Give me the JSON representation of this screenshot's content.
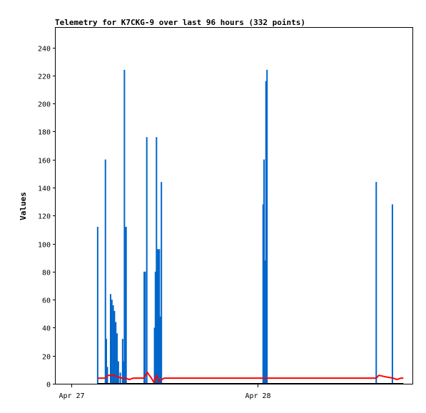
{
  "chart_data": {
    "type": "line",
    "title": "Telemetry for K7CKG-9 over last 96 hours (332 points)",
    "xlabel": "",
    "ylabel": "Values",
    "ylim": [
      0,
      254
    ],
    "yticks": [
      0,
      20,
      40,
      60,
      80,
      100,
      120,
      140,
      160,
      180,
      200,
      220,
      240
    ],
    "xlim": [
      "2024-04-26T22:00",
      "2024-04-28T20:00"
    ],
    "xticks": [
      {
        "label": "Apr 27",
        "t": "2024-04-27T00:00"
      },
      {
        "label": "Apr 28",
        "t": "2024-04-28T00:00"
      }
    ],
    "grid": false,
    "legend": "none",
    "series": [
      {
        "color": "#0066cc",
        "style": "spikes",
        "points": [
          [
            "2024-04-27T03:25",
            112
          ],
          [
            "2024-04-27T04:25",
            160
          ],
          [
            "2024-04-27T04:32",
            32
          ],
          [
            "2024-04-27T04:40",
            12
          ],
          [
            "2024-04-27T05:05",
            64
          ],
          [
            "2024-04-27T05:15",
            60
          ],
          [
            "2024-04-27T05:25",
            56
          ],
          [
            "2024-04-27T05:35",
            52
          ],
          [
            "2024-04-27T05:45",
            44
          ],
          [
            "2024-04-27T05:55",
            36
          ],
          [
            "2024-04-27T06:05",
            16
          ],
          [
            "2024-04-27T06:20",
            8
          ],
          [
            "2024-04-27T06:38",
            32
          ],
          [
            "2024-04-27T06:45",
            16
          ],
          [
            "2024-04-27T06:52",
            224
          ],
          [
            "2024-04-27T07:00",
            112
          ],
          [
            "2024-04-27T07:05",
            112
          ],
          [
            "2024-04-27T09:25",
            80
          ],
          [
            "2024-04-27T09:32",
            80
          ],
          [
            "2024-04-27T09:45",
            176
          ],
          [
            "2024-04-27T10:45",
            40
          ],
          [
            "2024-04-27T10:52",
            80
          ],
          [
            "2024-04-27T11:00",
            176
          ],
          [
            "2024-04-27T11:08",
            96
          ],
          [
            "2024-04-27T11:15",
            96
          ],
          [
            "2024-04-27T11:22",
            96
          ],
          [
            "2024-04-27T11:30",
            48
          ],
          [
            "2024-04-27T11:38",
            144
          ],
          [
            "2024-04-28T00:45",
            128
          ],
          [
            "2024-04-28T00:52",
            160
          ],
          [
            "2024-04-28T01:00",
            88
          ],
          [
            "2024-04-28T01:07",
            216
          ],
          [
            "2024-04-28T01:15",
            224
          ],
          [
            "2024-04-28T15:20",
            144
          ],
          [
            "2024-04-28T17:25",
            128
          ]
        ]
      },
      {
        "color": "#ff0000",
        "style": "line",
        "points": [
          [
            "2024-04-27T03:25",
            4
          ],
          [
            "2024-04-27T04:25",
            4
          ],
          [
            "2024-04-27T04:45",
            6
          ],
          [
            "2024-04-27T05:30",
            6
          ],
          [
            "2024-04-27T06:30",
            4
          ],
          [
            "2024-04-27T07:00",
            4
          ],
          [
            "2024-04-27T07:30",
            3
          ],
          [
            "2024-04-27T08:00",
            4
          ],
          [
            "2024-04-27T09:20",
            4
          ],
          [
            "2024-04-27T09:50",
            8
          ],
          [
            "2024-04-27T10:20",
            4
          ],
          [
            "2024-04-27T10:40",
            1
          ],
          [
            "2024-04-27T11:00",
            6
          ],
          [
            "2024-04-27T11:20",
            2
          ],
          [
            "2024-04-27T11:40",
            3
          ],
          [
            "2024-04-27T12:00",
            4
          ],
          [
            "2024-04-28T01:00",
            4
          ],
          [
            "2024-04-28T15:20",
            4
          ],
          [
            "2024-04-28T15:40",
            6
          ],
          [
            "2024-04-28T16:30",
            5
          ],
          [
            "2024-04-28T17:30",
            4
          ],
          [
            "2024-04-28T18:00",
            3
          ],
          [
            "2024-04-28T18:30",
            4
          ],
          [
            "2024-04-28T18:50",
            4
          ]
        ]
      },
      {
        "color": "#000000",
        "style": "line",
        "points": [
          [
            "2024-04-27T03:25",
            0
          ],
          [
            "2024-04-28T18:50",
            0
          ]
        ]
      }
    ]
  }
}
